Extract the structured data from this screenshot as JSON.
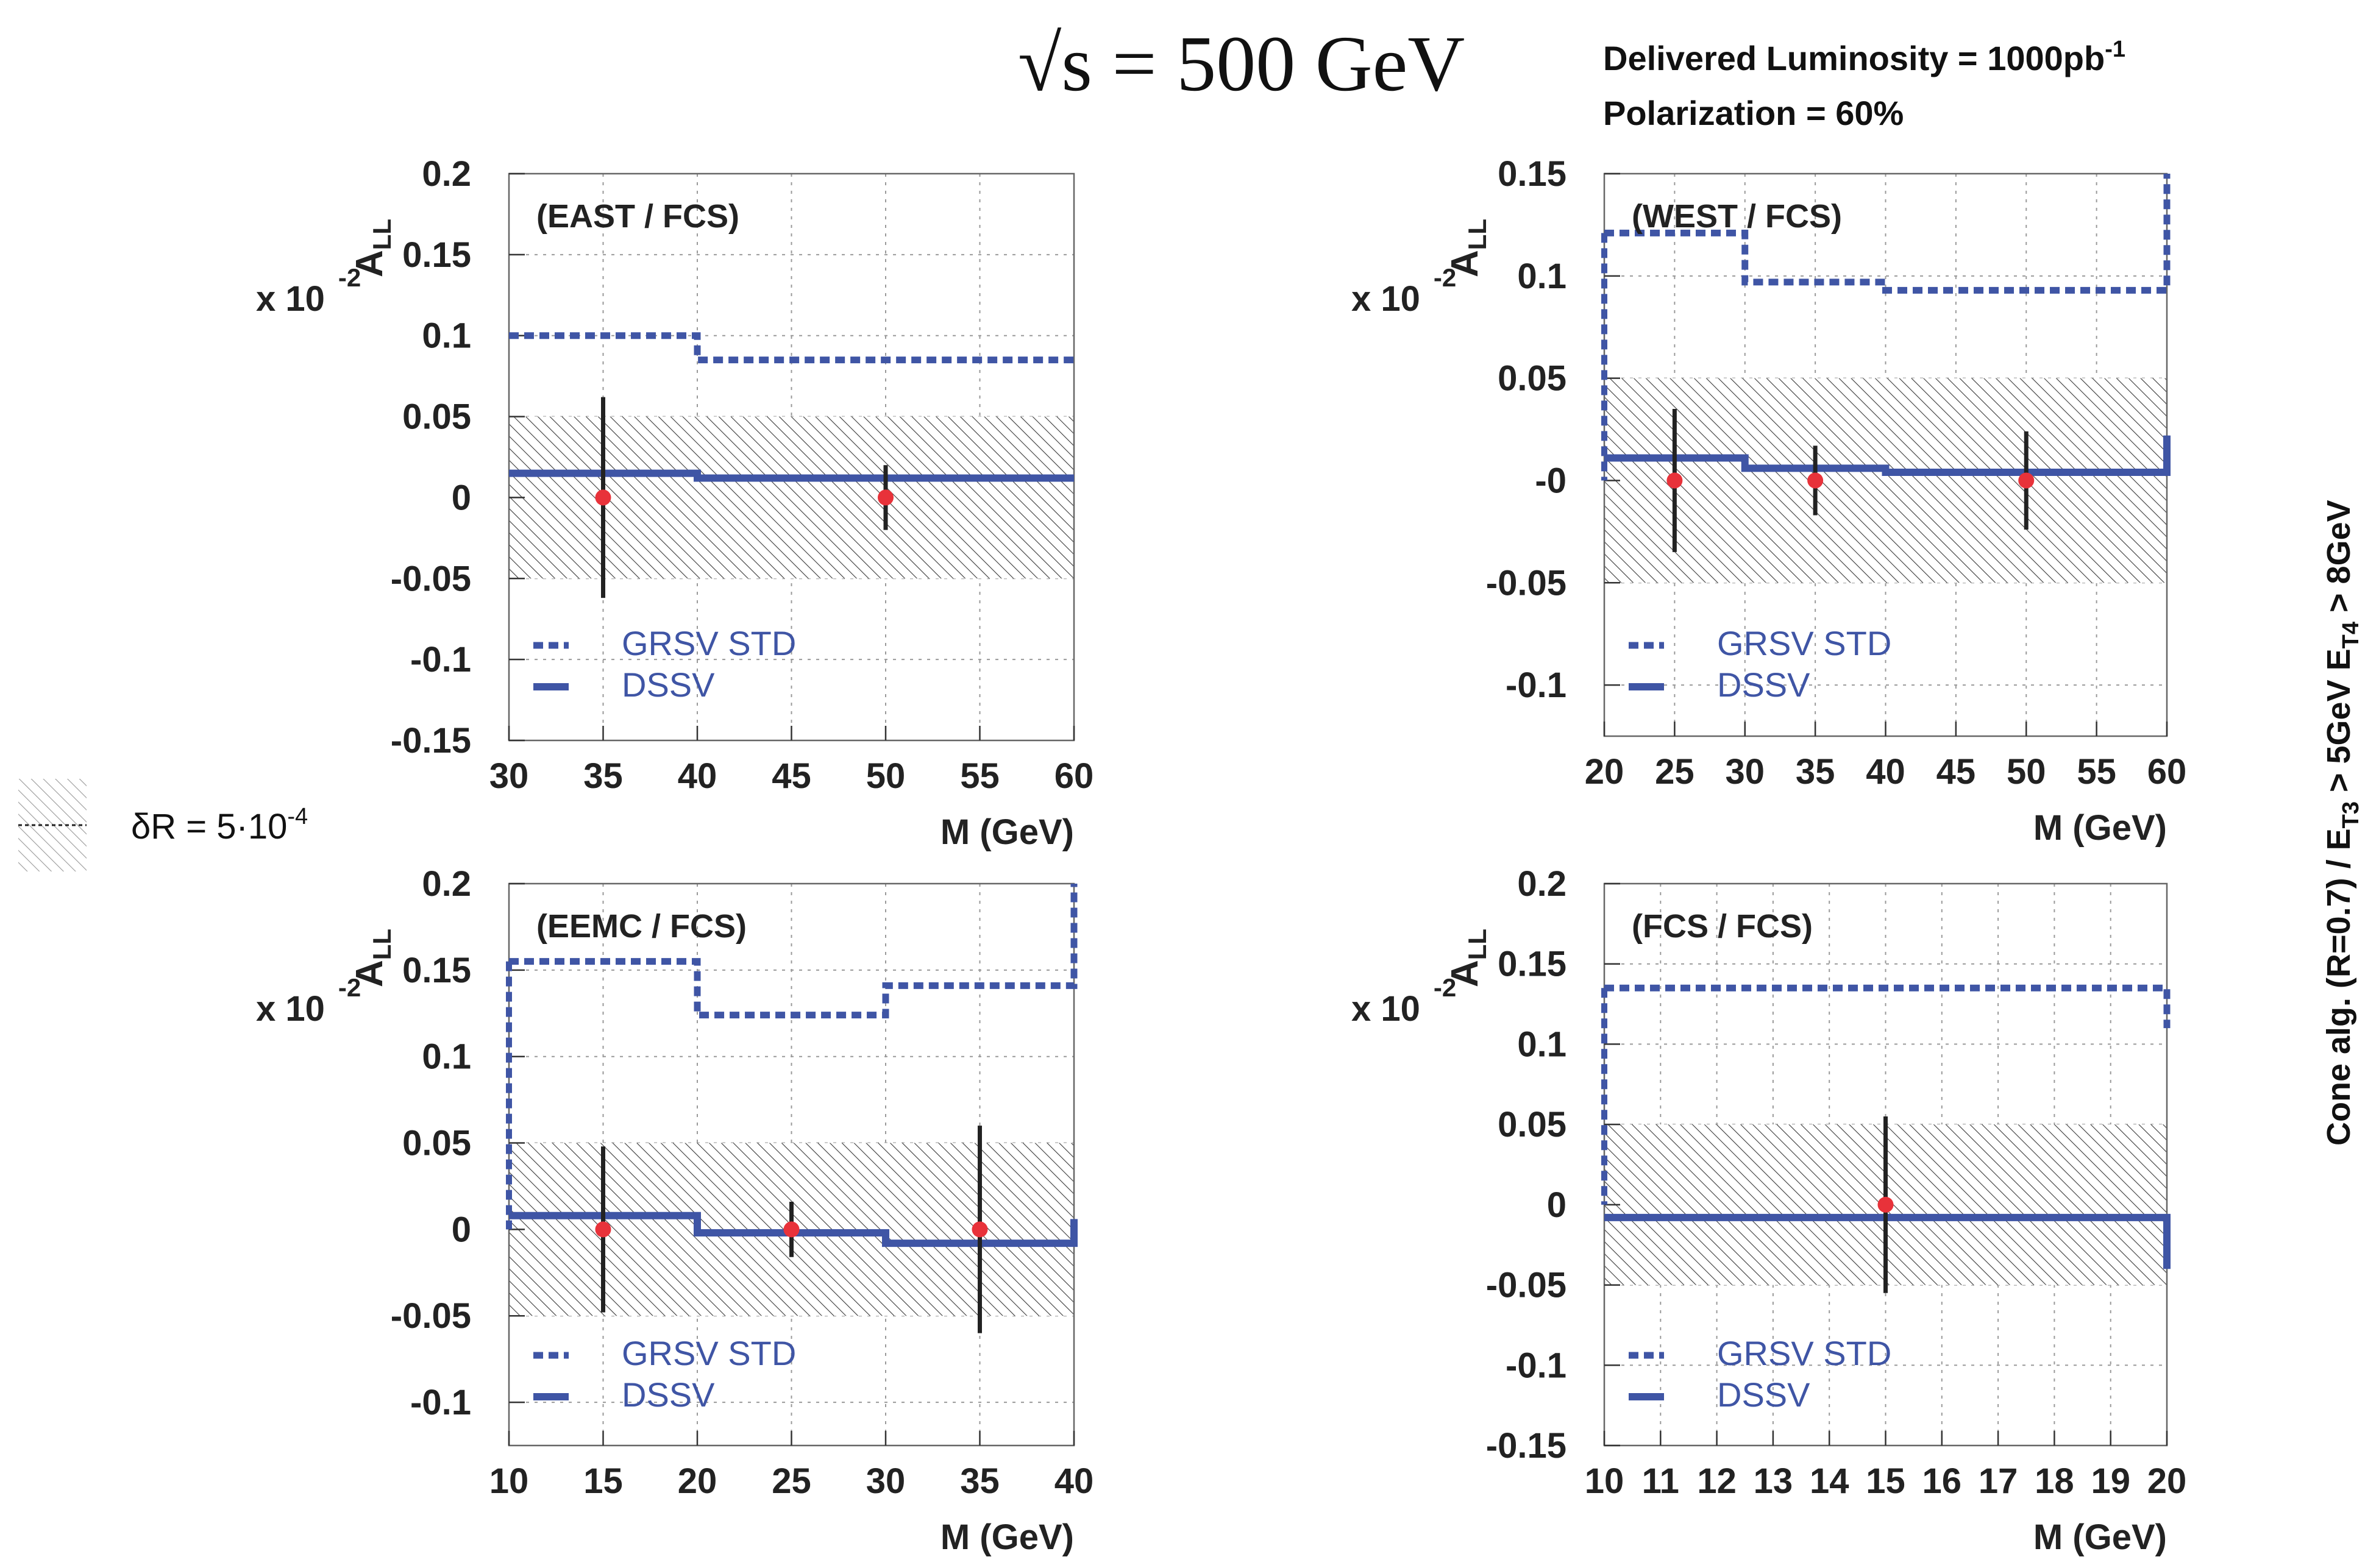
{
  "header": {
    "energy_label": "√s = 500 GeV",
    "luminosity_label": "Delivered Luminosity = 1000pb",
    "luminosity_exponent": "-1",
    "polarization_label": "Polarization = 60%"
  },
  "side_label": {
    "text": "Cone alg. (R=0.7) / E",
    "t3_sub": "T3",
    "mid": " > 5GeV  E",
    "t4_sub": "T4",
    "end": " > 8GeV"
  },
  "band_legend": {
    "label": "δR = 5·10",
    "exponent": "-4"
  },
  "colors": {
    "theory": "#3f55a5",
    "points": "#e8323a",
    "errors": "#222222",
    "band_hatch": "#444444",
    "grid": "#9a9a9a"
  },
  "chart_data": [
    {
      "type": "line",
      "title": "(EAST / FCS)",
      "xlabel": "M (GeV)",
      "ylabel": "A",
      "ylabel_sub": "LL",
      "scale_label": "x 10",
      "scale_exponent": "-2",
      "xlim": [
        30,
        60
      ],
      "ylim": [
        -0.15,
        0.2
      ],
      "xticks": [
        30,
        35,
        40,
        45,
        50,
        55,
        60
      ],
      "yticks": [
        -0.15,
        -0.1,
        -0.05,
        0,
        0.05,
        0.1,
        0.15,
        0.2
      ],
      "ytick_labels": [
        "-0.15",
        "-0.1",
        "-0.05",
        "0",
        "0.05",
        "0.1",
        "0.15",
        "0.2"
      ],
      "band": [
        -0.05,
        0.05
      ],
      "series": [
        {
          "name": "GRSV STD",
          "style": "dashed",
          "bins": [
            30,
            40,
            60
          ],
          "values": [
            0.1,
            0.085
          ]
        },
        {
          "name": "DSSV",
          "style": "solid",
          "bins": [
            30,
            40,
            60
          ],
          "values": [
            0.015,
            0.012
          ]
        }
      ],
      "points": [
        {
          "x": 35,
          "y": 0.0,
          "err": 0.062
        },
        {
          "x": 50,
          "y": 0.0,
          "err": 0.02
        }
      ]
    },
    {
      "type": "line",
      "title": "(WEST / FCS)",
      "xlabel": "M (GeV)",
      "ylabel": "A",
      "ylabel_sub": "LL",
      "scale_label": "x 10",
      "scale_exponent": "-2",
      "xlim": [
        20,
        60
      ],
      "ylim": [
        -0.125,
        0.15
      ],
      "xticks": [
        20,
        25,
        30,
        35,
        40,
        45,
        50,
        55,
        60
      ],
      "yticks": [
        -0.1,
        -0.05,
        0,
        0.05,
        0.1,
        0.15
      ],
      "ytick_labels": [
        "-0.1",
        "-0.05",
        "-0",
        "0.05",
        "0.1",
        "0.15"
      ],
      "band": [
        -0.05,
        0.05
      ],
      "series": [
        {
          "name": "GRSV STD",
          "style": "dashed",
          "bins": [
            20,
            30,
            40,
            60
          ],
          "values": [
            0.121,
            0.097,
            0.093
          ],
          "edge_to": 0.15
        },
        {
          "name": "DSSV",
          "style": "solid",
          "bins": [
            20,
            30,
            40,
            60
          ],
          "values": [
            0.011,
            0.006,
            0.004
          ],
          "edge_to": 0.022
        }
      ],
      "points": [
        {
          "x": 25,
          "y": 0.0,
          "err": 0.035
        },
        {
          "x": 35,
          "y": 0.0,
          "err": 0.017
        },
        {
          "x": 50,
          "y": 0.0,
          "err": 0.024
        }
      ]
    },
    {
      "type": "line",
      "title": "(EEMC / FCS)",
      "xlabel": "M (GeV)",
      "ylabel": "A",
      "ylabel_sub": "LL",
      "scale_label": "x 10",
      "scale_exponent": "-2",
      "xlim": [
        10,
        40
      ],
      "ylim": [
        -0.125,
        0.2
      ],
      "xticks": [
        10,
        15,
        20,
        25,
        30,
        35,
        40
      ],
      "yticks": [
        -0.1,
        -0.05,
        0,
        0.05,
        0.1,
        0.15,
        0.2
      ],
      "ytick_labels": [
        "-0.1",
        "-0.05",
        "0",
        "0.05",
        "0.1",
        "0.15",
        "0.2"
      ],
      "band": [
        -0.05,
        0.05
      ],
      "series": [
        {
          "name": "GRSV STD",
          "style": "dashed",
          "bins": [
            10,
            20,
            30,
            40
          ],
          "values": [
            0.155,
            0.124,
            0.141
          ],
          "edge_to": 0.2
        },
        {
          "name": "DSSV",
          "style": "solid",
          "bins": [
            10,
            20,
            30,
            40
          ],
          "values": [
            0.008,
            -0.002,
            -0.008
          ],
          "edge_to": 0.006
        }
      ],
      "points": [
        {
          "x": 15,
          "y": 0.0,
          "err": 0.048
        },
        {
          "x": 25,
          "y": 0.0,
          "err": 0.016
        },
        {
          "x": 35,
          "y": 0.0,
          "err": 0.06
        }
      ]
    },
    {
      "type": "line",
      "title": "(FCS / FCS)",
      "xlabel": "M (GeV)",
      "ylabel": "A",
      "ylabel_sub": "LL",
      "scale_label": "x 10",
      "scale_exponent": "-2",
      "xlim": [
        10,
        20
      ],
      "ylim": [
        -0.15,
        0.2
      ],
      "xticks": [
        10,
        11,
        12,
        13,
        14,
        15,
        16,
        17,
        18,
        19,
        20
      ],
      "yticks": [
        -0.15,
        -0.1,
        -0.05,
        0,
        0.05,
        0.1,
        0.15,
        0.2
      ],
      "ytick_labels": [
        "-0.15",
        "-0.1",
        "-0.05",
        "0",
        "0.05",
        "0.1",
        "0.15",
        "0.2"
      ],
      "band": [
        -0.05,
        0.05
      ],
      "series": [
        {
          "name": "GRSV STD",
          "style": "dashed",
          "bins": [
            10,
            20
          ],
          "values": [
            0.135
          ],
          "edge_to": 0.11
        },
        {
          "name": "DSSV",
          "style": "solid",
          "bins": [
            10,
            20
          ],
          "values": [
            -0.008
          ],
          "edge_to": -0.04
        }
      ],
      "points": [
        {
          "x": 15,
          "y": 0.0,
          "err": 0.055
        }
      ]
    }
  ]
}
